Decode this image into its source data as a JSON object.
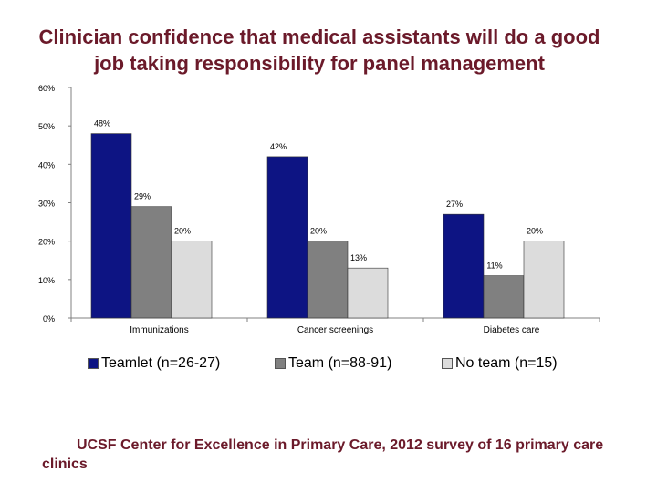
{
  "chart_data": {
    "type": "bar",
    "title": "Clinician confidence that medical assistants will do a good job taking responsibility for panel management",
    "categories": [
      "Immunizations",
      "Cancer screenings",
      "Diabetes care"
    ],
    "series": [
      {
        "name": "Teamlet (n=26-27)",
        "values": [
          48,
          42,
          27
        ],
        "labels": [
          "48%",
          "42%",
          "27%"
        ],
        "color": "#0d1483"
      },
      {
        "name": "Team (n=88-91)",
        "values": [
          29,
          20,
          11
        ],
        "labels": [
          "29%",
          "20%",
          "11%"
        ],
        "color": "#808080"
      },
      {
        "name": "No team (n=15)",
        "values": [
          20,
          13,
          20
        ],
        "labels": [
          "20%",
          "13%",
          "20%"
        ],
        "color": "#dcdcdc"
      }
    ],
    "ylim": [
      0,
      60
    ],
    "yticks": [
      "0%",
      "10%",
      "20%",
      "30%",
      "40%",
      "50%",
      "60%"
    ],
    "xlabel": "",
    "ylabel": "",
    "legend": "bottom"
  },
  "footer": "UCSF Center for Excellence in Primary Care, 2012 survey of 16 primary care clinics"
}
